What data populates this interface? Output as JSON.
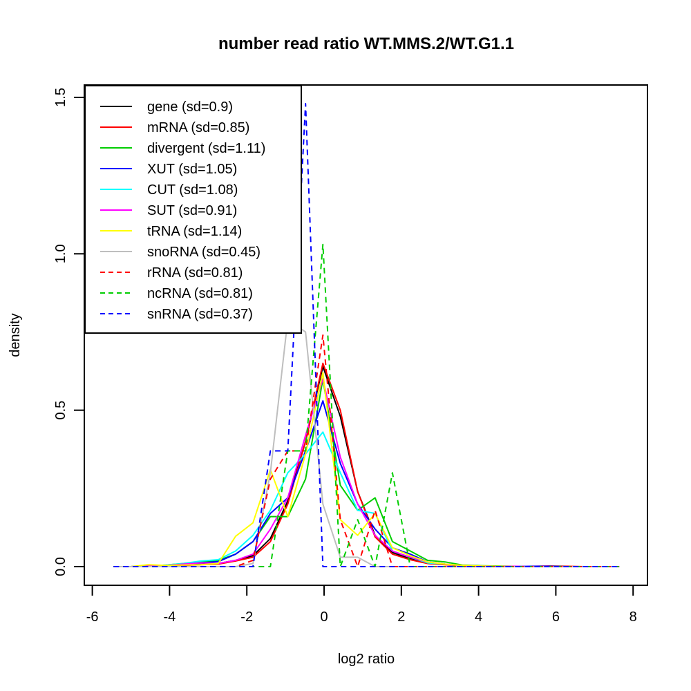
{
  "chart_data": {
    "type": "line",
    "title": "number read ratio WT.MMS.2/WT.G1.1",
    "xlabel": "log2 ratio",
    "ylabel": "density",
    "xlim": [
      -6.3,
      8.3
    ],
    "ylim": [
      -0.06,
      1.56
    ],
    "xticks": [
      -6,
      -4,
      -2,
      0,
      2,
      4,
      6,
      8
    ],
    "xtick_labels": [
      "-6",
      "-4",
      "-2",
      "0",
      "2",
      "4",
      "6",
      "8"
    ],
    "yticks": [
      0.0,
      0.5,
      1.0,
      1.5
    ],
    "ytick_labels": [
      "0.0",
      "0.5",
      "1.0",
      "1.5"
    ],
    "grid": false,
    "legend_position": "top-left",
    "x": [
      -5.45,
      -5.0,
      -4.55,
      -4.1,
      -3.64,
      -3.19,
      -2.74,
      -2.29,
      -1.84,
      -1.39,
      -0.94,
      -0.48,
      -0.03,
      0.42,
      0.87,
      1.32,
      1.77,
      2.23,
      2.68,
      3.13,
      3.58,
      4.03,
      4.48,
      4.94,
      5.39,
      5.84,
      6.29,
      6.74,
      7.19,
      7.64
    ],
    "series": [
      {
        "name": "gene (sd=0.9)",
        "color": "#000000",
        "dash": "solid",
        "values": [
          0,
          0,
          0.002,
          0.003,
          0.005,
          0.007,
          0.01,
          0.02,
          0.035,
          0.09,
          0.21,
          0.4,
          0.64,
          0.48,
          0.24,
          0.1,
          0.045,
          0.025,
          0.012,
          0.007,
          0.003,
          0.002,
          0.001,
          0.001,
          0.001,
          0.001,
          0,
          0,
          0,
          0
        ]
      },
      {
        "name": "mRNA (sd=0.85)",
        "color": "#ff0000",
        "dash": "solid",
        "values": [
          0,
          0,
          0.002,
          0.003,
          0.004,
          0.006,
          0.008,
          0.018,
          0.03,
          0.08,
          0.2,
          0.4,
          0.65,
          0.5,
          0.24,
          0.095,
          0.04,
          0.022,
          0.01,
          0.006,
          0.003,
          0.002,
          0.001,
          0.001,
          0.001,
          0.002,
          0.001,
          0,
          0,
          0
        ]
      },
      {
        "name": "divergent (sd=1.11)",
        "color": "#00cd00",
        "dash": "solid",
        "values": [
          0,
          0,
          0.002,
          0.005,
          0.01,
          0.015,
          0.02,
          0.04,
          0.08,
          0.16,
          0.16,
          0.28,
          0.6,
          0.26,
          0.18,
          0.22,
          0.08,
          0.05,
          0.02,
          0.015,
          0.005,
          0.003,
          0.002,
          0.001,
          0.001,
          0.001,
          0,
          0,
          0,
          0
        ]
      },
      {
        "name": "XUT (sd=1.05)",
        "color": "#0000ff",
        "dash": "solid",
        "values": [
          0,
          0,
          0.002,
          0.004,
          0.008,
          0.012,
          0.016,
          0.04,
          0.08,
          0.17,
          0.22,
          0.37,
          0.53,
          0.33,
          0.2,
          0.12,
          0.06,
          0.04,
          0.015,
          0.008,
          0.004,
          0.002,
          0.001,
          0.001,
          0.001,
          0.001,
          0,
          0,
          0,
          0
        ]
      },
      {
        "name": "CUT (sd=1.08)",
        "color": "#00ffff",
        "dash": "solid",
        "values": [
          0,
          0,
          0.002,
          0.005,
          0.01,
          0.018,
          0.022,
          0.05,
          0.1,
          0.18,
          0.3,
          0.36,
          0.43,
          0.3,
          0.18,
          0.17,
          0.05,
          0.03,
          0.012,
          0.008,
          0.003,
          0.002,
          0.001,
          0.001,
          0,
          0,
          0,
          0,
          0,
          0
        ]
      },
      {
        "name": "SUT (sd=0.91)",
        "color": "#ff00ff",
        "dash": "solid",
        "values": [
          0,
          0,
          0.002,
          0.004,
          0.008,
          0.012,
          0.01,
          0.02,
          0.04,
          0.12,
          0.22,
          0.42,
          0.6,
          0.35,
          0.2,
          0.1,
          0.05,
          0.03,
          0.015,
          0.008,
          0.004,
          0.002,
          0.001,
          0.001,
          0,
          0,
          0,
          0,
          0,
          0
        ]
      },
      {
        "name": "tRNA (sd=1.14)",
        "color": "#ffff00",
        "dash": "solid",
        "values": [
          0,
          0,
          0.006,
          0.004,
          0.005,
          0.006,
          0.01,
          0.097,
          0.14,
          0.31,
          0.16,
          0.36,
          0.62,
          0.15,
          0.1,
          0.17,
          0.06,
          0.035,
          0.015,
          0.008,
          0.004,
          0.002,
          0.001,
          0,
          0,
          0,
          0,
          0,
          0,
          0
        ]
      },
      {
        "name": "snoRNA (sd=0.45)",
        "color": "#bebebe",
        "dash": "solid",
        "values": [
          0,
          0,
          0,
          0,
          0,
          0,
          0,
          0,
          0.01,
          0.3,
          0.79,
          0.75,
          0.2,
          0.03,
          0.03,
          0,
          0,
          0,
          0,
          0,
          0,
          0,
          0,
          0,
          0,
          0,
          0,
          0,
          0,
          0
        ]
      },
      {
        "name": "rRNA (sd=0.81)",
        "color": "#ff0000",
        "dash": "dashed",
        "values": [
          0,
          0,
          0,
          0,
          0,
          0,
          0,
          0,
          0.02,
          0.28,
          0.37,
          0.37,
          0.74,
          0.15,
          0,
          0.18,
          0,
          0,
          0,
          0,
          0,
          0,
          0,
          0,
          0,
          0,
          0,
          0,
          0,
          0
        ]
      },
      {
        "name": "ncRNA (sd=0.81)",
        "color": "#00cd00",
        "dash": "dashed",
        "values": [
          0,
          0,
          0,
          0,
          0,
          0,
          0,
          0,
          0,
          0,
          0.37,
          0.37,
          1.03,
          0,
          0.15,
          0,
          0.3,
          0,
          0,
          0,
          0,
          0,
          0,
          0,
          0,
          0,
          0,
          0,
          0,
          0
        ]
      },
      {
        "name": "snRNA (sd=0.37)",
        "color": "#0000ff",
        "dash": "dashed",
        "values": [
          0,
          0,
          0,
          0,
          0,
          0,
          0,
          0,
          0,
          0.37,
          0.37,
          1.48,
          0,
          0,
          0,
          0,
          0,
          0,
          0,
          0,
          0,
          0,
          0,
          0,
          0,
          0,
          0,
          0,
          0,
          0
        ]
      }
    ]
  }
}
